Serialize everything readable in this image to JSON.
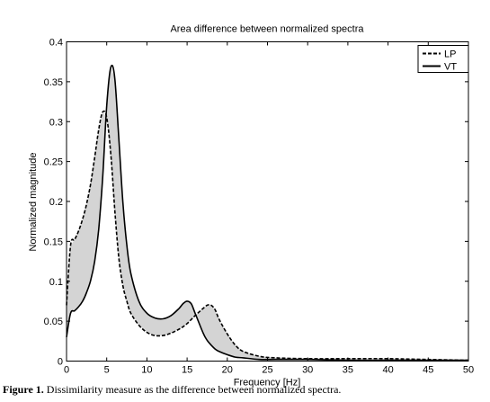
{
  "chart_data": {
    "type": "line",
    "title": "Area difference between normalized spectra",
    "xlabel": "Frequency [Hz]",
    "ylabel": "Normalized magnitude",
    "xlim": [
      0,
      50
    ],
    "ylim": [
      0,
      0.4
    ],
    "xticks": [
      "0",
      "5",
      "10",
      "15",
      "20",
      "25",
      "30",
      "35",
      "40",
      "45",
      "50"
    ],
    "yticks": [
      "0",
      "0.05",
      "0.1",
      "0.15",
      "0.2",
      "0.25",
      "0.3",
      "0.35",
      "0.4"
    ],
    "grid": false,
    "legend_position": "top-right",
    "fill_between_series": true,
    "fill_color": "#d4d4d4",
    "x": [
      0,
      0.5,
      1,
      1.5,
      2,
      2.5,
      3,
      3.5,
      4,
      4.5,
      5,
      5.5,
      6,
      6.5,
      7,
      7.5,
      8,
      9,
      10,
      11,
      12,
      13,
      14,
      14.5,
      15,
      15.5,
      16,
      17,
      17.5,
      18,
      18.5,
      19,
      20,
      21,
      22,
      24,
      26,
      30,
      35,
      40,
      45,
      50
    ],
    "series": [
      {
        "name": "LP",
        "style": "dashed",
        "values": [
          0.07,
          0.145,
          0.152,
          0.163,
          0.178,
          0.197,
          0.222,
          0.255,
          0.29,
          0.312,
          0.305,
          0.26,
          0.19,
          0.13,
          0.095,
          0.075,
          0.06,
          0.045,
          0.036,
          0.032,
          0.032,
          0.035,
          0.04,
          0.043,
          0.047,
          0.052,
          0.057,
          0.066,
          0.07,
          0.07,
          0.064,
          0.052,
          0.034,
          0.02,
          0.012,
          0.006,
          0.004,
          0.003,
          0.003,
          0.003,
          0.002,
          0.001
        ]
      },
      {
        "name": "VT",
        "style": "solid",
        "values": [
          0.03,
          0.06,
          0.063,
          0.068,
          0.075,
          0.086,
          0.101,
          0.125,
          0.165,
          0.23,
          0.32,
          0.368,
          0.355,
          0.28,
          0.2,
          0.145,
          0.11,
          0.075,
          0.06,
          0.054,
          0.053,
          0.057,
          0.066,
          0.072,
          0.075,
          0.072,
          0.06,
          0.035,
          0.026,
          0.02,
          0.015,
          0.012,
          0.008,
          0.005,
          0.004,
          0.002,
          0.002,
          0.002,
          0.001,
          0.001,
          0.001,
          0.001
        ]
      }
    ]
  },
  "caption": {
    "label": "Figure 1.",
    "text": " Dissimilarity measure as the difference between normalized spectra."
  }
}
